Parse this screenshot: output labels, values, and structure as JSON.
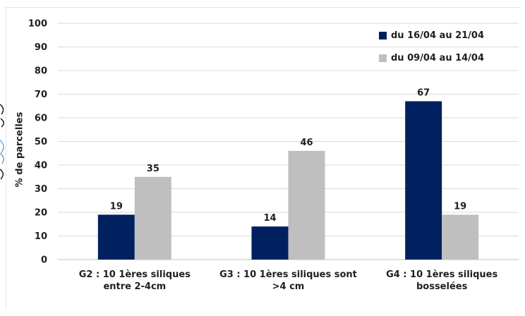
{
  "chart_data": {
    "type": "bar",
    "title": "",
    "xlabel": "",
    "ylabel": "% de parcelles",
    "ylim": [
      0,
      100
    ],
    "yticks": [
      0,
      10,
      20,
      30,
      40,
      50,
      60,
      70,
      80,
      90,
      100
    ],
    "grid": true,
    "legend_position": "top-right",
    "categories": [
      "G2 : 10 1ères siliques\nentre 2-4cm",
      "G3 : 10 1ères siliques sont\n>4 cm",
      "G4 : 10 1ères siliques\nbosselées"
    ],
    "series": [
      {
        "name": "du 16/04 au 21/04",
        "color": "#002060",
        "values": [
          19,
          14,
          67
        ]
      },
      {
        "name": "du 09/04 au 14/04",
        "color": "#bfbfbf",
        "values": [
          35,
          46,
          19
        ]
      }
    ]
  }
}
